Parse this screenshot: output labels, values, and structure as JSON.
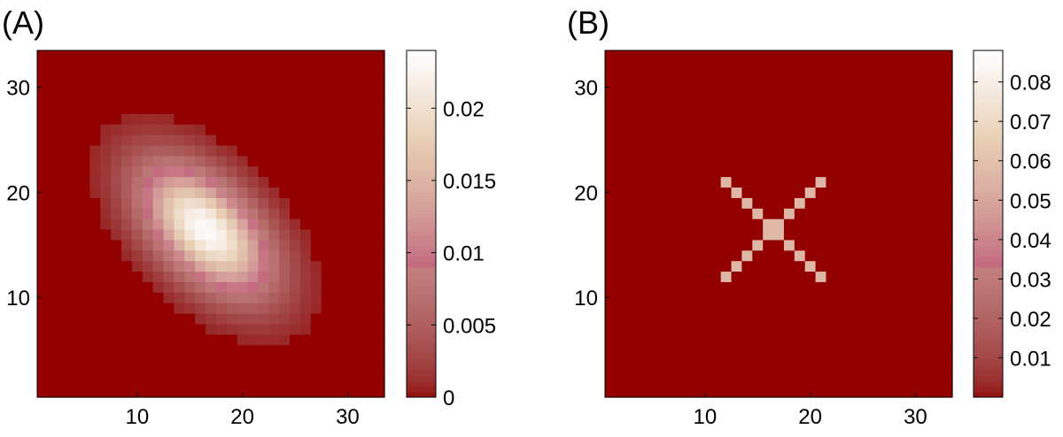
{
  "panels": [
    {
      "label": "(A)"
    },
    {
      "label": "(B)"
    }
  ],
  "chart_data": [
    {
      "type": "heatmap",
      "title": "",
      "xlabel": "",
      "ylabel": "",
      "xlim": [
        0.5,
        33.5
      ],
      "ylim": [
        0.5,
        33.5
      ],
      "xticks": [
        10,
        20,
        30
      ],
      "yticks": [
        10,
        20,
        30
      ],
      "grid": false,
      "colormap": "pink",
      "background_value": 0,
      "pattern": "rotated gaussian blob",
      "gaussian": {
        "center_x": 16.5,
        "center_y": 16.5,
        "peak": 0.0235,
        "angle_deg": -45,
        "sigma_major": 5.2,
        "sigma_minor": 2.9,
        "cutoff": 0.0008
      },
      "colorbar": {
        "min": 0,
        "max": 0.024,
        "ticks": [
          0,
          0.005,
          0.01,
          0.015,
          0.02
        ],
        "tick_labels": [
          "0",
          "0.005",
          "0.01",
          "0.015",
          "0.02"
        ]
      }
    },
    {
      "type": "heatmap",
      "title": "",
      "xlabel": "",
      "ylabel": "",
      "xlim": [
        0.5,
        33.5
      ],
      "ylim": [
        0.5,
        33.5
      ],
      "xticks": [
        10,
        20,
        30
      ],
      "yticks": [
        10,
        20,
        30
      ],
      "grid": false,
      "colormap": "pink",
      "background_value": 0,
      "pattern": "X shape (two diagonals)",
      "x_shape": {
        "center": [
          16.5,
          16.5
        ],
        "half_span": 4.5,
        "value": 0.056
      },
      "colorbar": {
        "min": 0,
        "max": 0.088,
        "ticks": [
          0.01,
          0.02,
          0.03,
          0.04,
          0.05,
          0.06,
          0.07,
          0.08
        ],
        "tick_labels": [
          "0.01",
          "0.02",
          "0.03",
          "0.04",
          "0.05",
          "0.06",
          "0.07",
          "0.08"
        ]
      }
    }
  ]
}
